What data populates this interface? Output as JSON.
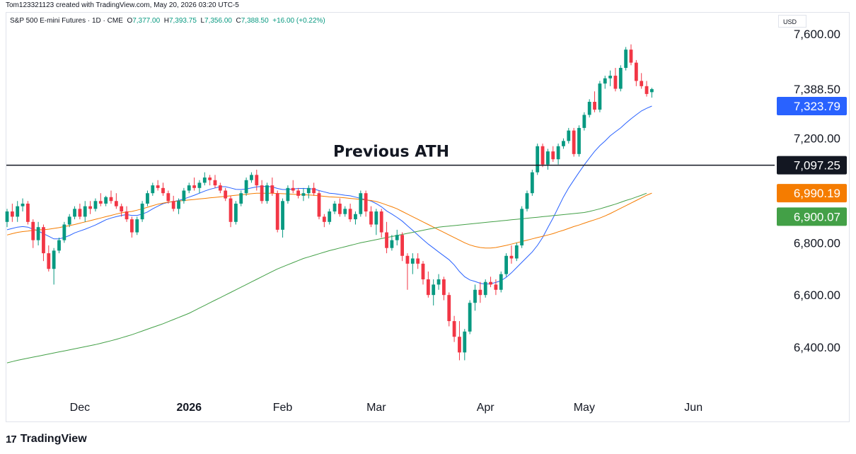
{
  "header": {
    "attribution": "Tom123321123 created with TradingView.com, May 20, 2026 03:20 UTC-5"
  },
  "legend": {
    "symbol": "S&P 500 E-mini Futures · 1D · CME",
    "open_label": "O",
    "open": "7,377.00",
    "high_label": "H",
    "high": "7,393.75",
    "low_label": "L",
    "low": "7,356.00",
    "close_label": "C",
    "close": "7,388.50",
    "change": "+16.00 (+0.22%)"
  },
  "currency": "USD",
  "brand": {
    "logo_glyph": "17",
    "name": "TradingView"
  },
  "colors": {
    "up": "#089981",
    "down": "#f23645",
    "ma_fast": "#2962ff",
    "ma_mid": "#f57c00",
    "ma_slow": "#43a047",
    "line": "#131722"
  },
  "chart_data": {
    "type": "candlestick",
    "title": "",
    "ylim": [
      6260,
      7640
    ],
    "y_ticks": [
      6400,
      6600,
      6800,
      7200,
      7600
    ],
    "y_tick_labels": [
      "6,400.00",
      "6,600.00",
      "6,800.00",
      "7,200.00",
      "7,600.00"
    ],
    "x_labels": [
      {
        "label": "Dec",
        "index": 14
      },
      {
        "label": "2026",
        "index": 35
      },
      {
        "label": "Feb",
        "index": 53
      },
      {
        "label": "Mar",
        "index": 71
      },
      {
        "label": "Apr",
        "index": 92
      },
      {
        "label": "May",
        "index": 111
      },
      {
        "label": "Jun",
        "index": 132
      }
    ],
    "annotation": {
      "text": "Previous ATH",
      "value": 7097.25
    },
    "price_badges": [
      {
        "label": "7,388.50",
        "value": 7388.5,
        "style": "plain"
      },
      {
        "label": "7,323.79",
        "value": 7323.79,
        "style": "ma_fast"
      },
      {
        "label": "7,097.25",
        "value": 7097.25,
        "style": "line"
      },
      {
        "label": "6,990.19",
        "value": 6990.19,
        "style": "ma_mid"
      },
      {
        "label": "6,900.07",
        "value": 6900.07,
        "style": "ma_slow"
      }
    ],
    "candles": [
      [
        6880,
        6930,
        6860,
        6920
      ],
      [
        6920,
        6950,
        6880,
        6900
      ],
      [
        6900,
        6960,
        6880,
        6940
      ],
      [
        6940,
        6970,
        6920,
        6950
      ],
      [
        6950,
        6960,
        6870,
        6880
      ],
      [
        6880,
        6890,
        6780,
        6810
      ],
      [
        6810,
        6880,
        6790,
        6860
      ],
      [
        6860,
        6870,
        6730,
        6760
      ],
      [
        6760,
        6790,
        6690,
        6700
      ],
      [
        6700,
        6780,
        6640,
        6770
      ],
      [
        6770,
        6820,
        6760,
        6810
      ],
      [
        6810,
        6880,
        6800,
        6870
      ],
      [
        6870,
        6910,
        6860,
        6900
      ],
      [
        6900,
        6940,
        6890,
        6930
      ],
      [
        6930,
        6950,
        6890,
        6900
      ],
      [
        6900,
        6960,
        6880,
        6940
      ],
      [
        6940,
        6960,
        6910,
        6930
      ],
      [
        6930,
        6970,
        6920,
        6960
      ],
      [
        6960,
        6990,
        6940,
        6950
      ],
      [
        6950,
        6980,
        6940,
        6975
      ],
      [
        6975,
        7000,
        6950,
        6960
      ],
      [
        6960,
        6990,
        6930,
        6940
      ],
      [
        6940,
        6950,
        6900,
        6920
      ],
      [
        6920,
        6940,
        6880,
        6890
      ],
      [
        6890,
        6900,
        6820,
        6840
      ],
      [
        6840,
        6900,
        6830,
        6890
      ],
      [
        6890,
        6960,
        6880,
        6950
      ],
      [
        6950,
        7000,
        6940,
        6990
      ],
      [
        6990,
        7030,
        6980,
        7020
      ],
      [
        7020,
        7040,
        7000,
        7010
      ],
      [
        7010,
        7030,
        6980,
        6990
      ],
      [
        6990,
        7000,
        6950,
        6960
      ],
      [
        6960,
        6980,
        6920,
        6930
      ],
      [
        6930,
        6970,
        6910,
        6960
      ],
      [
        6960,
        7010,
        6950,
        7000
      ],
      [
        7000,
        7030,
        6990,
        7020
      ],
      [
        7020,
        7050,
        7000,
        7010
      ],
      [
        7010,
        7040,
        6990,
        7030
      ],
      [
        7030,
        7070,
        7020,
        7050
      ],
      [
        7050,
        7060,
        7020,
        7040
      ],
      [
        7040,
        7060,
        7010,
        7020
      ],
      [
        7020,
        7030,
        6990,
        7000
      ],
      [
        7000,
        7010,
        6960,
        6970
      ],
      [
        6970,
        6980,
        6860,
        6880
      ],
      [
        6880,
        6960,
        6870,
        6950
      ],
      [
        6950,
        7000,
        6940,
        6990
      ],
      [
        6990,
        7050,
        6980,
        7040
      ],
      [
        7040,
        7070,
        7030,
        7060
      ],
      [
        7060,
        7080,
        7000,
        7020
      ],
      [
        7020,
        7040,
        6950,
        6960
      ],
      [
        6960,
        7030,
        6950,
        7020
      ],
      [
        7020,
        7050,
        6980,
        6990
      ],
      [
        6990,
        7000,
        6840,
        6850
      ],
      [
        6850,
        6970,
        6820,
        6960
      ],
      [
        6960,
        7020,
        6950,
        7010
      ],
      [
        7010,
        7040,
        6990,
        7000
      ],
      [
        7000,
        7010,
        6970,
        6980
      ],
      [
        6980,
        7010,
        6960,
        6990
      ],
      [
        6990,
        7020,
        6970,
        7010
      ],
      [
        7010,
        7030,
        6980,
        6990
      ],
      [
        6990,
        7000,
        6890,
        6900
      ],
      [
        6900,
        6910,
        6860,
        6880
      ],
      [
        6880,
        6930,
        6870,
        6920
      ],
      [
        6920,
        6960,
        6910,
        6950
      ],
      [
        6950,
        6970,
        6900,
        6910
      ],
      [
        6910,
        6940,
        6900,
        6930
      ],
      [
        6930,
        6950,
        6880,
        6890
      ],
      [
        6890,
        6920,
        6870,
        6910
      ],
      [
        6910,
        7000,
        6900,
        6990
      ],
      [
        6990,
        7000,
        6900,
        6920
      ],
      [
        6920,
        6940,
        6860,
        6870
      ],
      [
        6870,
        6930,
        6830,
        6920
      ],
      [
        6920,
        6930,
        6820,
        6840
      ],
      [
        6840,
        6880,
        6760,
        6780
      ],
      [
        6780,
        6830,
        6770,
        6810
      ],
      [
        6810,
        6850,
        6790,
        6830
      ],
      [
        6830,
        6840,
        6730,
        6750
      ],
      [
        6750,
        6760,
        6620,
        6720
      ],
      [
        6720,
        6760,
        6680,
        6740
      ],
      [
        6740,
        6760,
        6700,
        6720
      ],
      [
        6720,
        6730,
        6640,
        6660
      ],
      [
        6660,
        6690,
        6590,
        6600
      ],
      [
        6600,
        6660,
        6560,
        6640
      ],
      [
        6640,
        6680,
        6620,
        6660
      ],
      [
        6660,
        6670,
        6580,
        6600
      ],
      [
        6600,
        6610,
        6480,
        6500
      ],
      [
        6500,
        6520,
        6420,
        6440
      ],
      [
        6440,
        6500,
        6350,
        6380
      ],
      [
        6380,
        6470,
        6350,
        6460
      ],
      [
        6460,
        6580,
        6450,
        6570
      ],
      [
        6570,
        6640,
        6540,
        6620
      ],
      [
        6620,
        6650,
        6570,
        6600
      ],
      [
        6600,
        6660,
        6590,
        6650
      ],
      [
        6650,
        6670,
        6630,
        6640
      ],
      [
        6640,
        6660,
        6600,
        6620
      ],
      [
        6620,
        6690,
        6610,
        6680
      ],
      [
        6680,
        6760,
        6670,
        6750
      ],
      [
        6750,
        6790,
        6720,
        6740
      ],
      [
        6740,
        6800,
        6730,
        6790
      ],
      [
        6790,
        6940,
        6780,
        6930
      ],
      [
        6930,
        7000,
        6920,
        6990
      ],
      [
        6990,
        7080,
        6980,
        7070
      ],
      [
        7070,
        7180,
        7060,
        7170
      ],
      [
        7170,
        7180,
        7090,
        7100
      ],
      [
        7100,
        7160,
        7080,
        7150
      ],
      [
        7150,
        7170,
        7110,
        7120
      ],
      [
        7120,
        7180,
        7100,
        7170
      ],
      [
        7170,
        7200,
        7160,
        7190
      ],
      [
        7190,
        7240,
        7180,
        7230
      ],
      [
        7230,
        7240,
        7130,
        7140
      ],
      [
        7140,
        7250,
        7130,
        7240
      ],
      [
        7240,
        7300,
        7230,
        7290
      ],
      [
        7290,
        7350,
        7280,
        7340
      ],
      [
        7340,
        7380,
        7300,
        7310
      ],
      [
        7310,
        7420,
        7300,
        7410
      ],
      [
        7410,
        7440,
        7390,
        7430
      ],
      [
        7430,
        7460,
        7400,
        7440
      ],
      [
        7440,
        7470,
        7380,
        7390
      ],
      [
        7390,
        7480,
        7380,
        7470
      ],
      [
        7470,
        7550,
        7460,
        7540
      ],
      [
        7540,
        7560,
        7480,
        7490
      ],
      [
        7490,
        7500,
        7400,
        7420
      ],
      [
        7420,
        7450,
        7390,
        7400
      ],
      [
        7400,
        7420,
        7360,
        7370
      ],
      [
        7377,
        7393.75,
        7356,
        7388.5
      ]
    ],
    "series": [
      {
        "key": "ma_fast",
        "start_index": 0,
        "values": [
          6850,
          6855,
          6860,
          6862,
          6860,
          6852,
          6845,
          6835,
          6825,
          6815,
          6815,
          6820,
          6828,
          6838,
          6845,
          6852,
          6860,
          6868,
          6878,
          6888,
          6895,
          6900,
          6905,
          6908,
          6905,
          6905,
          6910,
          6918,
          6930,
          6940,
          6950,
          6955,
          6958,
          6962,
          6968,
          6975,
          6982,
          6990,
          6998,
          7005,
          7010,
          7015,
          7015,
          7010,
          7005,
          7004,
          7006,
          7010,
          7014,
          7016,
          7016,
          7014,
          7008,
          7004,
          7004,
          7006,
          7008,
          7008,
          7007,
          7006,
          7000,
          6995,
          6990,
          6988,
          6985,
          6982,
          6980,
          6975,
          6970,
          6965,
          6960,
          6950,
          6938,
          6922,
          6910,
          6897,
          6883,
          6865,
          6848,
          6830,
          6812,
          6795,
          6780,
          6765,
          6750,
          6735,
          6715,
          6690,
          6670,
          6658,
          6652,
          6645,
          6642,
          6643,
          6648,
          6655,
          6668,
          6685,
          6705,
          6725,
          6745,
          6765,
          6790,
          6820,
          6858,
          6895,
          6935,
          6975,
          7010,
          7040,
          7070,
          7098,
          7125,
          7150,
          7172,
          7190,
          7210,
          7225,
          7240,
          7258,
          7275,
          7290,
          7305,
          7315,
          7323.79
        ]
      },
      {
        "key": "ma_mid",
        "start_index": 0,
        "values": [
          6830,
          6835,
          6840,
          6843,
          6845,
          6848,
          6850,
          6850,
          6852,
          6855,
          6858,
          6862,
          6866,
          6870,
          6875,
          6880,
          6885,
          6890,
          6895,
          6900,
          6905,
          6910,
          6915,
          6918,
          6920,
          6925,
          6930,
          6936,
          6942,
          6948,
          6952,
          6956,
          6958,
          6960,
          6962,
          6964,
          6966,
          6968,
          6970,
          6972,
          6974,
          6976,
          6978,
          6980,
          6982,
          6984,
          6986,
          6988,
          6990,
          6990,
          6990,
          6990,
          6989,
          6988,
          6987,
          6986,
          6985,
          6984,
          6983,
          6982,
          6980,
          6978,
          6976,
          6975,
          6974,
          6972,
          6970,
          6968,
          6966,
          6964,
          6962,
          6958,
          6952,
          6945,
          6938,
          6930,
          6920,
          6910,
          6900,
          6890,
          6880,
          6870,
          6860,
          6850,
          6840,
          6830,
          6820,
          6810,
          6800,
          6792,
          6786,
          6782,
          6780,
          6780,
          6782,
          6786,
          6790,
          6795,
          6800,
          6805,
          6810,
          6815,
          6820,
          6825,
          6830,
          6835,
          6842,
          6848,
          6855,
          6862,
          6868,
          6875,
          6882,
          6888,
          6895,
          6903,
          6912,
          6922,
          6932,
          6942,
          6952,
          6962,
          6972,
          6982,
          6990.19
        ]
      },
      {
        "key": "ma_slow",
        "start_index": 0,
        "values": [
          6340,
          6345,
          6350,
          6354,
          6358,
          6362,
          6366,
          6370,
          6374,
          6378,
          6382,
          6386,
          6390,
          6394,
          6398,
          6402,
          6406,
          6410,
          6415,
          6420,
          6425,
          6430,
          6436,
          6442,
          6448,
          6455,
          6462,
          6469,
          6476,
          6483,
          6490,
          6498,
          6506,
          6514,
          6522,
          6530,
          6540,
          6550,
          6560,
          6570,
          6580,
          6590,
          6600,
          6610,
          6620,
          6630,
          6640,
          6650,
          6660,
          6670,
          6680,
          6690,
          6700,
          6708,
          6716,
          6724,
          6732,
          6740,
          6746,
          6752,
          6758,
          6764,
          6770,
          6775,
          6780,
          6785,
          6790,
          6795,
          6800,
          6804,
          6808,
          6812,
          6816,
          6820,
          6824,
          6828,
          6832,
          6836,
          6840,
          6844,
          6848,
          6852,
          6856,
          6860,
          6862,
          6864,
          6866,
          6868,
          6870,
          6872,
          6874,
          6876,
          6878,
          6880,
          6882,
          6884,
          6886,
          6888,
          6890,
          6892,
          6894,
          6896,
          6898,
          6900,
          6902,
          6904,
          6906,
          6908,
          6910,
          6912,
          6914,
          6916,
          6920,
          6925,
          6930,
          6936,
          6942,
          6948,
          6955,
          6962,
          6968,
          6975,
          6982,
          6990,
          6900.07
        ]
      }
    ]
  }
}
